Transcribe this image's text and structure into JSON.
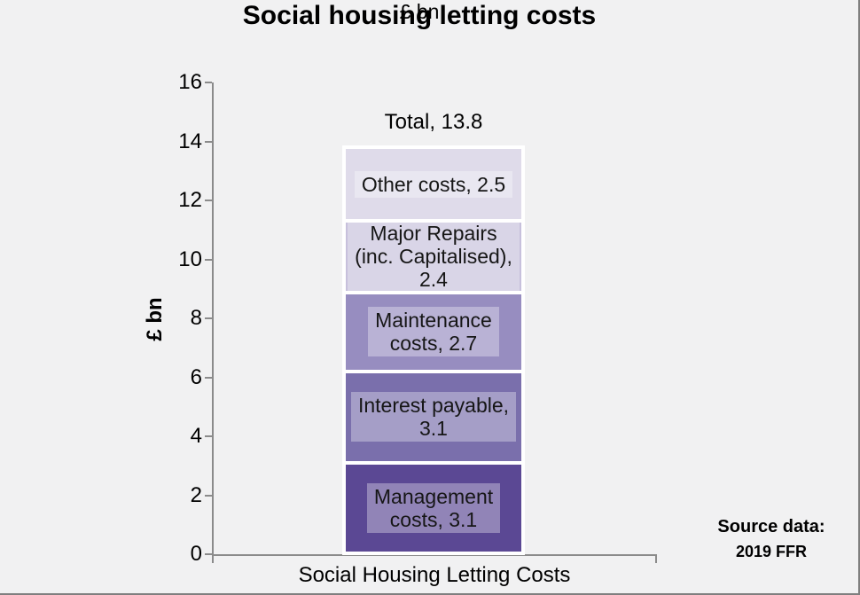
{
  "chart": {
    "title": "Social housing letting costs",
    "subtitle": "£ bn",
    "y_axis_title": "£ bn",
    "x_category_label": "Social Housing Letting Costs",
    "total_label": "Total, 13.8",
    "source_line1": "Source data:",
    "source_line2": "2019 FFR"
  },
  "chart_data": {
    "type": "bar",
    "subtype": "stacked-column",
    "title": "Social housing letting costs",
    "subtitle": "£ bn",
    "xlabel": "",
    "ylabel": "£ bn",
    "categories": [
      "Social Housing Letting Costs"
    ],
    "ylim": [
      0,
      16
    ],
    "ytick_step": 2,
    "grid": false,
    "legend": "none",
    "total": 13.8,
    "total_label": "Total, 13.8",
    "segments_bottom_to_top": [
      {
        "name": "Management costs",
        "value": 3.1,
        "color": "#5B4894",
        "label_lines": [
          "Management",
          "costs, 3.1"
        ]
      },
      {
        "name": "Interest payable",
        "value": 3.1,
        "color": "#7A6FAC",
        "label_lines": [
          "Interest payable,",
          "3.1"
        ]
      },
      {
        "name": "Maintenance costs",
        "value": 2.7,
        "color": "#978DC0",
        "label_lines": [
          "Maintenance",
          "costs, 2.7"
        ]
      },
      {
        "name": "Major Repairs (inc. Capitalised)",
        "value": 2.4,
        "color": "#C7C0DC",
        "label_lines": [
          "Major Repairs",
          "(inc. Capitalised),",
          "2.4"
        ]
      },
      {
        "name": "Other costs",
        "value": 2.5,
        "color": "#DFDBEA",
        "label_lines": [
          "Other costs, 2.5"
        ]
      }
    ],
    "source": [
      "Source data:",
      "2019 FFR"
    ],
    "colors": {
      "background": "#F1F1F2",
      "axis": "#8B8B8B",
      "segment_border": "#FFFFFF",
      "text": "#000000"
    }
  }
}
